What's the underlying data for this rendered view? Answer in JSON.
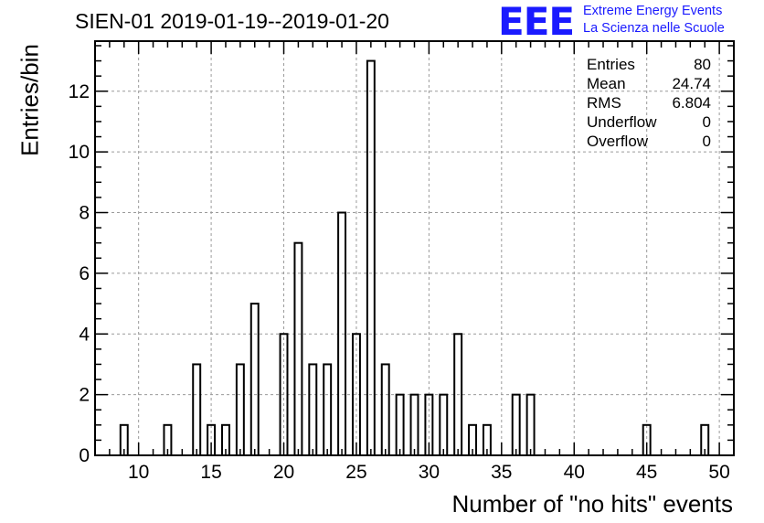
{
  "title": "SIEN-01 2019-01-19--2019-01-20",
  "logo": {
    "mark": "EEE",
    "line1": "Extreme Energy Events",
    "line2": "La Scienza nelle Scuole",
    "color": "#1a1aff"
  },
  "stats": [
    {
      "label": "Entries",
      "value": "80"
    },
    {
      "label": "Mean",
      "value": "24.74"
    },
    {
      "label": "RMS",
      "value": "6.804"
    },
    {
      "label": "Underflow",
      "value": "0"
    },
    {
      "label": "Overflow",
      "value": "0"
    }
  ],
  "chart_data": {
    "type": "bar",
    "title": "SIEN-01 2019-01-19--2019-01-20",
    "xlabel": "Number of \"no hits\" events",
    "ylabel": "Entries/bin",
    "xlim": [
      7,
      51
    ],
    "ylim": [
      0,
      13.65
    ],
    "bin_width": 0.5,
    "xticks": [
      10,
      15,
      20,
      25,
      30,
      35,
      40,
      45,
      50
    ],
    "yticks": [
      0,
      2,
      4,
      6,
      8,
      10,
      12
    ],
    "grid": true,
    "bar_fill": "none",
    "bar_stroke": "#000000",
    "bins": [
      {
        "x": 9,
        "count": 1
      },
      {
        "x": 12,
        "count": 1
      },
      {
        "x": 14,
        "count": 3
      },
      {
        "x": 15,
        "count": 1
      },
      {
        "x": 16,
        "count": 1
      },
      {
        "x": 17,
        "count": 3
      },
      {
        "x": 18,
        "count": 5
      },
      {
        "x": 20,
        "count": 4
      },
      {
        "x": 21,
        "count": 7
      },
      {
        "x": 22,
        "count": 3
      },
      {
        "x": 23,
        "count": 3
      },
      {
        "x": 24,
        "count": 8
      },
      {
        "x": 25,
        "count": 4
      },
      {
        "x": 26,
        "count": 13
      },
      {
        "x": 27,
        "count": 3
      },
      {
        "x": 28,
        "count": 2
      },
      {
        "x": 29,
        "count": 2
      },
      {
        "x": 30,
        "count": 2
      },
      {
        "x": 31,
        "count": 2
      },
      {
        "x": 32,
        "count": 4
      },
      {
        "x": 33,
        "count": 1
      },
      {
        "x": 34,
        "count": 1
      },
      {
        "x": 36,
        "count": 2
      },
      {
        "x": 37,
        "count": 2
      },
      {
        "x": 45,
        "count": 1
      },
      {
        "x": 49,
        "count": 1
      }
    ]
  }
}
